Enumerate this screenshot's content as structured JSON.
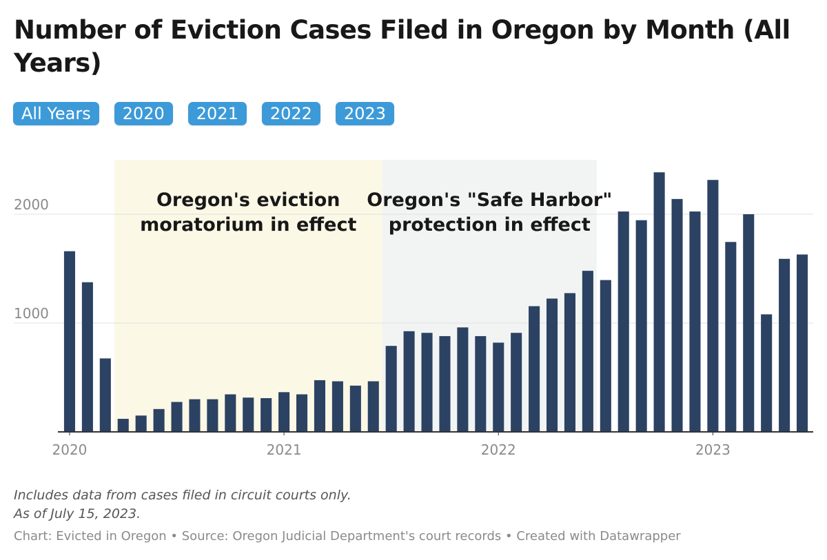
{
  "title": "Number of Eviction Cases Filed in Oregon by Month (All Years)",
  "filters": [
    "All Years",
    "2020",
    "2021",
    "2022",
    "2023"
  ],
  "notes": [
    "Includes data from cases filed in circuit courts only.",
    "As of July 15, 2023."
  ],
  "footer": "Chart: Evicted in Oregon • Source: Oregon Judicial Department's court records • Created with Datawrapper",
  "colors": {
    "bar": "#2c4263",
    "pill": "#3d9ad8",
    "moratorium": "#fcf8e6",
    "safe_harbor": "#f2f4f4",
    "grid": "#e0e0e0",
    "baseline": "#333333"
  },
  "chart_data": {
    "type": "bar",
    "title": "Number of Eviction Cases Filed in Oregon by Month (All Years)",
    "categories": [
      "2020-01",
      "2020-02",
      "2020-03",
      "2020-04",
      "2020-05",
      "2020-06",
      "2020-07",
      "2020-08",
      "2020-09",
      "2020-10",
      "2020-11",
      "2020-12",
      "2021-01",
      "2021-02",
      "2021-03",
      "2021-04",
      "2021-05",
      "2021-06",
      "2021-07",
      "2021-08",
      "2021-09",
      "2021-10",
      "2021-11",
      "2021-12",
      "2022-01",
      "2022-02",
      "2022-03",
      "2022-04",
      "2022-05",
      "2022-06",
      "2022-07",
      "2022-08",
      "2022-09",
      "2022-10",
      "2022-11",
      "2022-12",
      "2023-01",
      "2023-02",
      "2023-03",
      "2023-04",
      "2023-05",
      "2023-06"
    ],
    "values": [
      1660,
      1375,
      675,
      120,
      150,
      210,
      275,
      300,
      300,
      345,
      315,
      310,
      365,
      345,
      475,
      465,
      425,
      465,
      790,
      925,
      910,
      880,
      960,
      880,
      820,
      910,
      1155,
      1225,
      1275,
      1480,
      1395,
      2025,
      1945,
      2385,
      2140,
      2025,
      2315,
      1745,
      2000,
      1080,
      1590,
      1630
    ],
    "ylim": [
      0,
      2500
    ],
    "yticks": [
      1000,
      2000
    ],
    "ytick_labels": [
      "1000",
      "2000"
    ],
    "xtick_labels": [
      "2020",
      "2021",
      "2022",
      "2023"
    ],
    "xtick_positions": [
      "2020-01",
      "2021-01",
      "2022-01",
      "2023-01"
    ],
    "xlabel": "",
    "ylabel": "",
    "grid": true,
    "annotations": [
      {
        "text_lines": [
          "Oregon's eviction",
          "moratorium in effect"
        ],
        "start": "2020-04",
        "end": "2021-06"
      },
      {
        "text_lines": [
          "Oregon's \"Safe Harbor\"",
          "protection in effect"
        ],
        "start": "2021-07",
        "end": "2022-06"
      }
    ]
  }
}
